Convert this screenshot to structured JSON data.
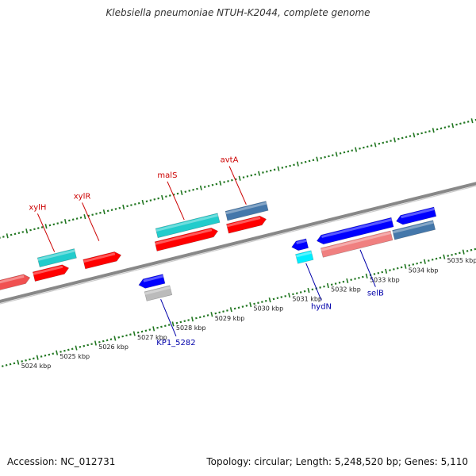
{
  "title": "Klebsiella pneumoniae NTUH-K2044, complete genome",
  "footer": {
    "accession": "Accession: NC_012731",
    "summary": "Topology: circular; Length: 5,248,520 bp; Genes: 5,110"
  },
  "colors": {
    "forward_cds": "#ff0000",
    "reverse_cds": "#0000ff",
    "forward_label": "#cc0000",
    "reverse_label": "#0000aa",
    "cyan_feature": "#22cccc",
    "steelblue_feature": "#4477aa",
    "pink_feature": "#f08080",
    "grey_feature": "#bbbbbb",
    "backbone": "#888888",
    "tick": "#227722"
  },
  "ticks": {
    "minor_step_kbp": 0.1,
    "major_step_kbp": 0.5,
    "label_step_kbp": 1,
    "lower_labels": [
      {
        "kbp": 5024,
        "label": "5024 kbp"
      },
      {
        "kbp": 5025,
        "label": "5025 kbp"
      },
      {
        "kbp": 5026,
        "label": "5026 kbp"
      },
      {
        "kbp": 5027,
        "label": "5027 kbp"
      },
      {
        "kbp": 5028,
        "label": "5028 kbp"
      },
      {
        "kbp": 5029,
        "label": "5029 kbp"
      },
      {
        "kbp": 5030,
        "label": "5030 kbp"
      },
      {
        "kbp": 5031,
        "label": "5031 kbp"
      },
      {
        "kbp": 5032,
        "label": "5032 kbp"
      },
      {
        "kbp": 5033,
        "label": "5033 kbp"
      },
      {
        "kbp": 5034,
        "label": "5034 kbp"
      },
      {
        "kbp": 5035,
        "label": "5035 kbp"
      }
    ]
  },
  "features": [
    {
      "name": "f1",
      "strand": "+",
      "start": 5023.45,
      "end": 5024.3,
      "row": "fwd-inner",
      "color": "#f05050",
      "arrow": true
    },
    {
      "name": "f2",
      "strand": "+",
      "start": 5024.4,
      "end": 5025.3,
      "row": "fwd-inner",
      "color": "#ff0000",
      "arrow": true
    },
    {
      "name": "f3",
      "strand": "+",
      "start": 5024.6,
      "end": 5025.55,
      "row": "fwd-outer",
      "color": "#22cccc",
      "arrow": false
    },
    {
      "name": "f4",
      "strand": "+",
      "start": 5025.7,
      "end": 5026.65,
      "row": "fwd-mid",
      "color": "#ff0000",
      "arrow": true
    },
    {
      "name": "f5",
      "strand": "-",
      "start": 5026.9,
      "end": 5027.55,
      "row": "rev-inner",
      "color": "#0000ff",
      "arrow": true
    },
    {
      "name": "f6",
      "strand": "-",
      "start": 5027.0,
      "end": 5027.65,
      "row": "rev-outer",
      "color": "#bbbbbb",
      "arrow": false
    },
    {
      "name": "f7",
      "strand": "+",
      "start": 5027.55,
      "end": 5029.15,
      "row": "fwd-inner",
      "color": "#ff0000",
      "arrow": true
    },
    {
      "name": "f8",
      "strand": "+",
      "start": 5027.65,
      "end": 5029.25,
      "row": "fwd-outer",
      "color": "#22cccc",
      "arrow": false
    },
    {
      "name": "f9",
      "strand": "+",
      "start": 5029.4,
      "end": 5030.4,
      "row": "fwd-inner",
      "color": "#ff0000",
      "arrow": true
    },
    {
      "name": "f10",
      "strand": "+",
      "start": 5029.45,
      "end": 5030.5,
      "row": "fwd-outer",
      "color": "#4477aa",
      "arrow": false
    },
    {
      "name": "f11",
      "strand": "-",
      "start": 5030.85,
      "end": 5031.25,
      "row": "rev-inner",
      "color": "#0000ff",
      "arrow": true
    },
    {
      "name": "f12",
      "strand": "-",
      "start": 5030.9,
      "end": 5031.3,
      "row": "rev-outer",
      "color": "#00eeff",
      "arrow": false
    },
    {
      "name": "f13",
      "strand": "-",
      "start": 5031.5,
      "end": 5033.45,
      "row": "rev-inner",
      "color": "#0000ff",
      "arrow": true
    },
    {
      "name": "f14",
      "strand": "-",
      "start": 5031.55,
      "end": 5033.35,
      "row": "rev-outer",
      "color": "#f08080",
      "arrow": false
    },
    {
      "name": "f15",
      "strand": "-",
      "start": 5033.4,
      "end": 5034.45,
      "row": "rev-outer",
      "color": "#4477aa",
      "arrow": false
    },
    {
      "name": "f16",
      "strand": "-",
      "start": 5033.55,
      "end": 5034.55,
      "row": "rev-inner",
      "color": "#0000ff",
      "arrow": true
    }
  ],
  "gene_labels": [
    {
      "text": "xylH",
      "strand": "+",
      "kbp": 5025.05,
      "color": "#cc0000"
    },
    {
      "text": "xylR",
      "strand": "+",
      "kbp": 5026.2,
      "color": "#cc0000"
    },
    {
      "text": "malS",
      "strand": "+",
      "kbp": 5028.4,
      "color": "#cc0000"
    },
    {
      "text": "avtA",
      "strand": "+",
      "kbp": 5030.0,
      "color": "#cc0000"
    },
    {
      "text": "KP1_5282",
      "strand": "-",
      "kbp": 5027.35,
      "color": "#0000aa"
    },
    {
      "text": "hydN",
      "strand": "-",
      "kbp": 5031.1,
      "color": "#0000aa"
    },
    {
      "text": "selB",
      "strand": "-",
      "kbp": 5032.5,
      "color": "#0000aa"
    }
  ]
}
